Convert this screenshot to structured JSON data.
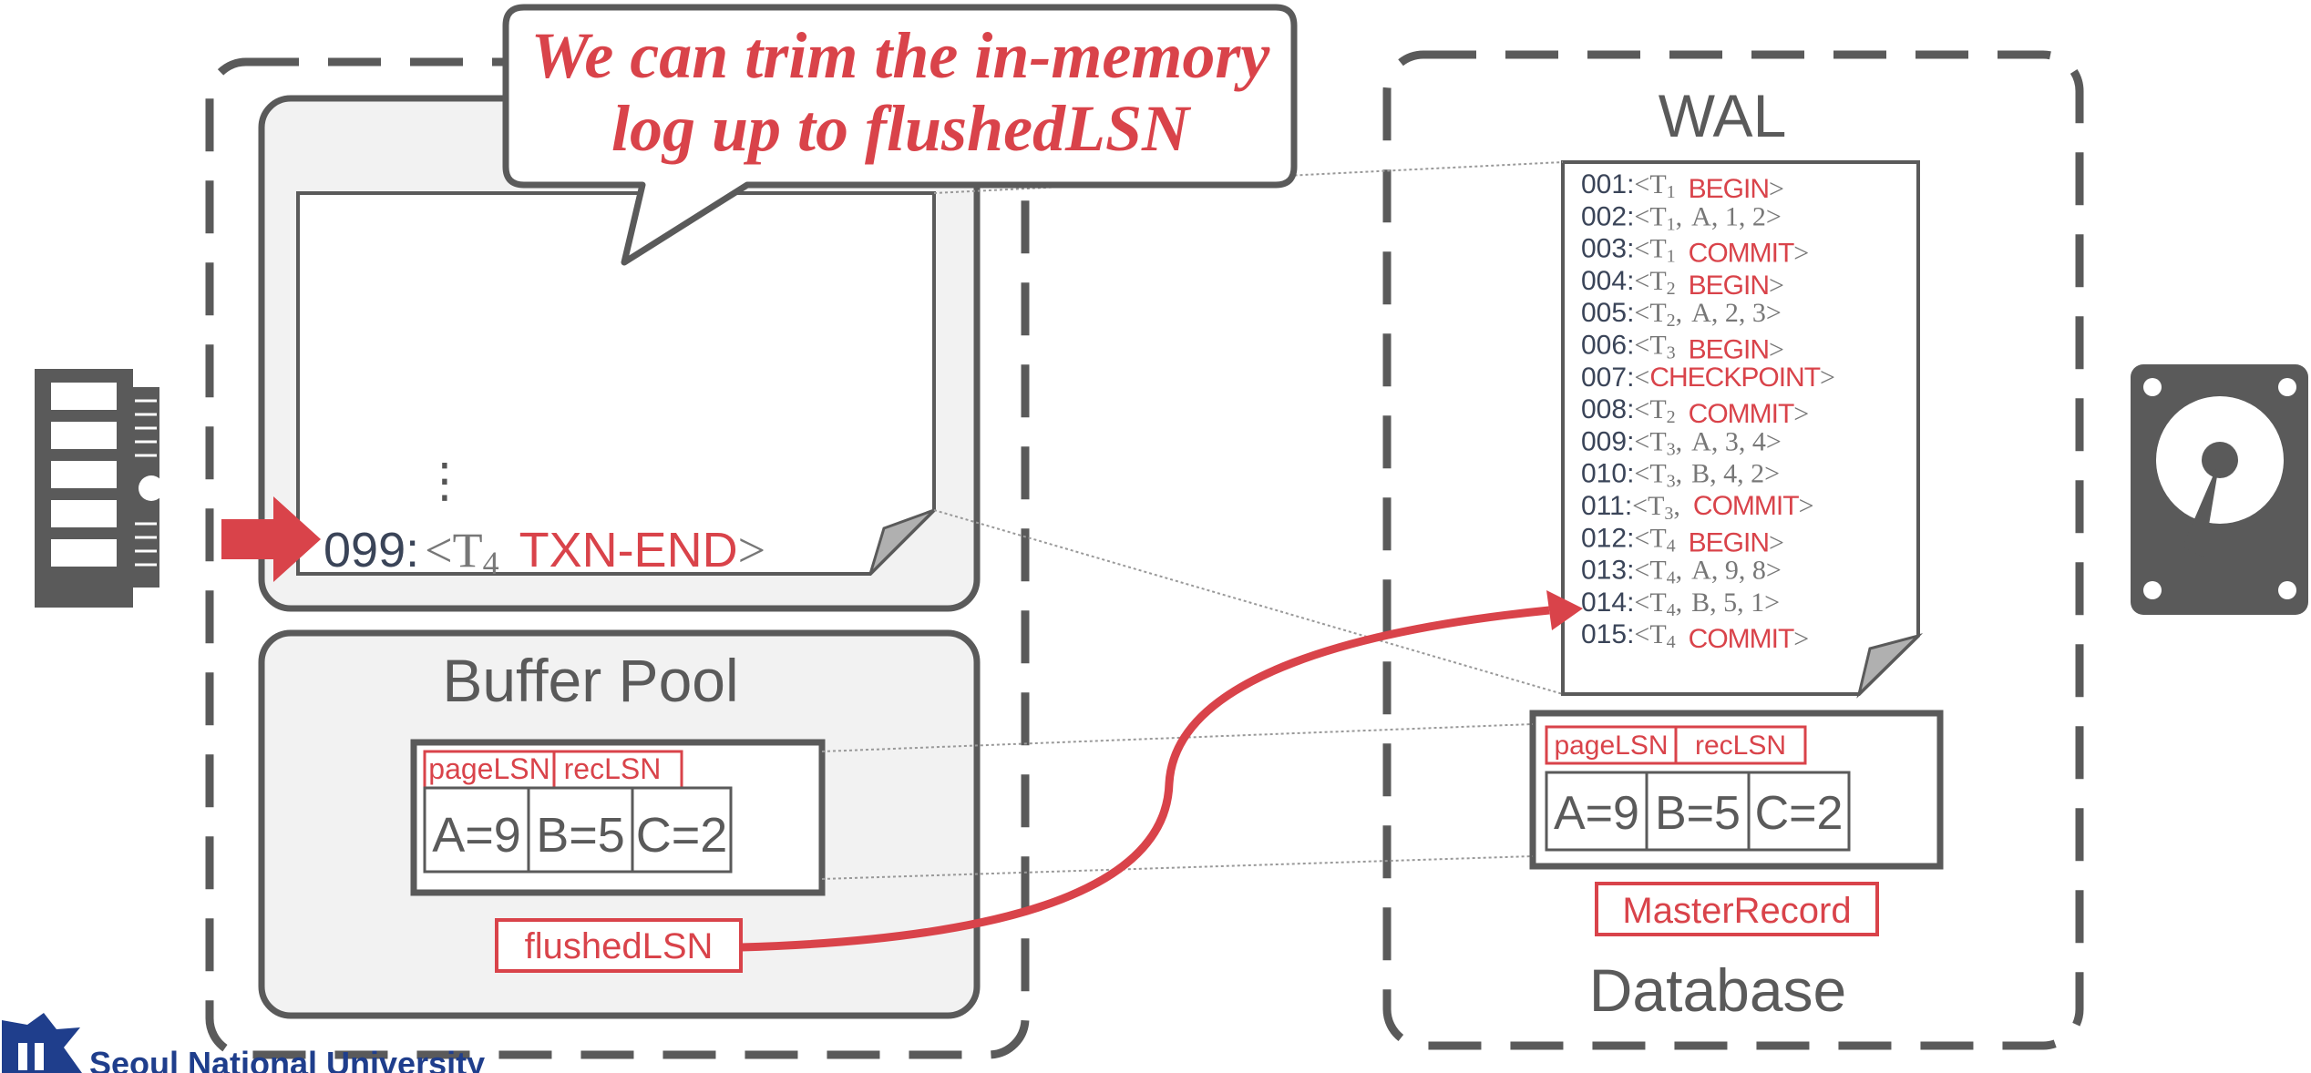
{
  "callout": {
    "line1": "We can trim the in-memory",
    "line2": "log up to flushedLSN"
  },
  "memory_log": {
    "ellipsis": "⋮",
    "entry": {
      "lsn": "099",
      "sep": ":",
      "open": "<T",
      "sub": "4",
      "keyword": "TXN-END",
      "close": ">"
    }
  },
  "buffer_pool": {
    "title": "Buffer Pool",
    "page_lsn_label": "pageLSN",
    "rec_lsn_label": "recLSN",
    "cells": [
      "A=9",
      "B=5",
      "C=2"
    ],
    "flushed_lsn_label": "flushedLSN"
  },
  "wal": {
    "title": "WAL",
    "entries": [
      {
        "lsn": "001",
        "sub": "1",
        "kw": "BEGIN",
        "args": "",
        "comma": false
      },
      {
        "lsn": "002",
        "sub": "1",
        "kw": "",
        "args": "A,  1,  2",
        "comma": true
      },
      {
        "lsn": "003",
        "sub": "1",
        "kw": "COMMIT",
        "args": "",
        "comma": false
      },
      {
        "lsn": "004",
        "sub": "2",
        "kw": "BEGIN",
        "args": "",
        "comma": false
      },
      {
        "lsn": "005",
        "sub": "2",
        "kw": "",
        "args": "A,  2,  3",
        "comma": true
      },
      {
        "lsn": "006",
        "sub": "3",
        "kw": "BEGIN",
        "args": "",
        "comma": false
      },
      {
        "lsn": "007",
        "sub": "",
        "kw": "CHECKPOINT",
        "args": "",
        "comma": false
      },
      {
        "lsn": "008",
        "sub": "2",
        "kw": "COMMIT",
        "args": "",
        "comma": false
      },
      {
        "lsn": "009",
        "sub": "3",
        "kw": "",
        "args": "A,  3,  4",
        "comma": true
      },
      {
        "lsn": "010",
        "sub": "3",
        "kw": "",
        "args": "B,  4,  2",
        "comma": true
      },
      {
        "lsn": "011",
        "sub": "3",
        "kw": "COMMIT",
        "args": "",
        "comma": true
      },
      {
        "lsn": "012",
        "sub": "4",
        "kw": "BEGIN",
        "args": "",
        "comma": false
      },
      {
        "lsn": "013",
        "sub": "4",
        "kw": "",
        "args": "A,  9,  8",
        "comma": true
      },
      {
        "lsn": "014",
        "sub": "4",
        "kw": "",
        "args": "B,  5,  1",
        "comma": true
      },
      {
        "lsn": "015",
        "sub": "4",
        "kw": "COMMIT",
        "args": "",
        "comma": false
      }
    ]
  },
  "database": {
    "title": "Database",
    "page_lsn_label": "pageLSN",
    "rec_lsn_label": "recLSN",
    "cells": [
      "A=9",
      "B=5",
      "C=2"
    ],
    "master_record_label": "MasterRecord"
  },
  "footer": {
    "university": "Seoul National University"
  },
  "icons": {
    "memory": "ram-chip-icon",
    "disk": "hard-disk-icon",
    "logo": "snu-logo-icon"
  },
  "colors": {
    "accent_red": "#d9434a",
    "border_gray": "#5a5a5a",
    "panel_fill": "#f2f2f2",
    "lsn_text": "#3a4458"
  }
}
